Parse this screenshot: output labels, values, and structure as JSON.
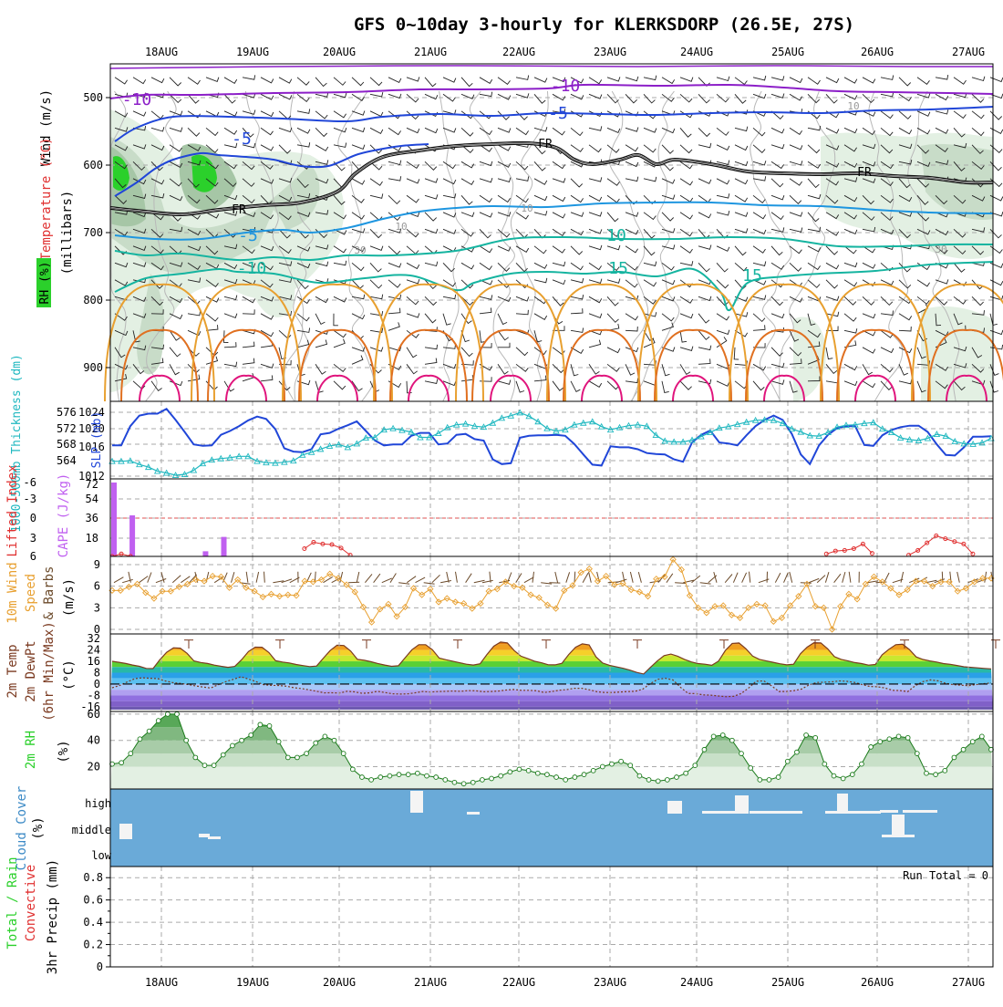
{
  "title": "GFS 0~10day 3-hourly for KLERKSDORP (26.5E, 27S)",
  "dates": [
    "18AUG",
    "19AUG",
    "20AUG",
    "21AUG",
    "22AUG",
    "23AUG",
    "24AUG",
    "25AUG",
    "26AUG",
    "27AUG"
  ],
  "colors": {
    "purple": "#8c1fc8",
    "blue": "#2046d8",
    "lightblue": "#1e96e0",
    "teal": "#15b4a0",
    "orange": "#e8a030",
    "darkorange": "#e07020",
    "magenta": "#e0147c",
    "rhgreen": "#2bd02b",
    "cloudblue": "#6aaad8",
    "cyan": "#20b8c0"
  },
  "chart_data": [
    {
      "panel": "upper-air",
      "type": "contour",
      "ylabel_left": [
        "Wind (m/s)",
        "Temperature (°C)",
        "RH (%)"
      ],
      "ylabel_axis": "(millibars)",
      "yticks": [
        "500",
        "600",
        "700",
        "800",
        "900"
      ],
      "ylim": [
        450,
        950
      ],
      "contour_labels": [
        {
          "text": "-10",
          "color": "purple"
        },
        {
          "text": "-10",
          "color": "purple"
        },
        {
          "text": "-5",
          "color": "blue"
        },
        {
          "text": "-5",
          "color": "blue"
        },
        {
          "text": "FR",
          "color": "black"
        },
        {
          "text": "FR",
          "color": "black"
        },
        {
          "text": "FR",
          "color": "black"
        },
        {
          "text": "-5",
          "color": "lightblue"
        },
        {
          "text": "-10",
          "color": "teal"
        },
        {
          "text": "10",
          "color": "teal"
        },
        {
          "text": "15",
          "color": "teal"
        },
        {
          "text": "15",
          "color": "teal"
        },
        {
          "text": "10",
          "color": "gray"
        },
        {
          "text": "10",
          "color": "gray"
        },
        {
          "text": "10",
          "color": "gray"
        },
        {
          "text": "30",
          "color": "gray"
        },
        {
          "text": "30",
          "color": "gray"
        }
      ]
    },
    {
      "panel": "slp-thickness",
      "type": "line",
      "ylabel_left": "1000-500mb Thickness (dm)",
      "ylabel_right": "SLP (mb)",
      "yticks_thickness": [
        "576",
        "572",
        "568",
        "564"
      ],
      "yticks_slp": [
        "1024",
        "1020",
        "1016",
        "1012"
      ],
      "series": [
        {
          "name": "SLP (mb)",
          "color": "blue",
          "ylim": [
            1012,
            1027
          ],
          "values": [
            1018.4,
            1018.4,
            1022.4,
            1024.6,
            1025,
            1025,
            1026,
            1023.7,
            1021.2,
            1018.6,
            1018.3,
            1018.4,
            1020.6,
            1021.4,
            1022.4,
            1023.6,
            1024.4,
            1023.9,
            1021.8,
            1017.8,
            1017.1,
            1017,
            1017.6,
            1020.7,
            1021,
            1021.9,
            1022.6,
            1023.4,
            1021.4,
            1019.4,
            1018.4,
            1018.6,
            1018.6,
            1020.4,
            1021,
            1021,
            1018.6,
            1018.8,
            1020.6,
            1020.8,
            1019.7,
            1019.4,
            1015.5,
            1014.5,
            1014.7,
            1020,
            1020.4,
            1020.5,
            1020.5,
            1020.6,
            1020.4,
            1018.7,
            1016.5,
            1014.4,
            1014.2,
            1018.2,
            1018,
            1018,
            1017.6,
            1016.8,
            1016.6,
            1016.5,
            1015.5,
            1015,
            1019,
            1020.6,
            1021.5,
            1019,
            1018.8,
            1018.4,
            1020.5,
            1022.4,
            1023.7,
            1024.6,
            1023.7,
            1020.8,
            1016.5,
            1014.5,
            1018.4,
            1020.6,
            1022,
            1022.4,
            1022.4,
            1018.5,
            1018.3,
            1020.5,
            1021.6,
            1022.2,
            1022.5,
            1022.5,
            1021.2,
            1018.6,
            1016.4,
            1016.3,
            1018,
            1020.2,
            1020.2,
            1020.3
          ]
        },
        {
          "name": "Thickness (dm)",
          "color": "cyan",
          "ylim": [
            562,
            578
          ],
          "values": [
            565.3,
            565.3,
            565.4,
            564.6,
            564,
            563.1,
            562.7,
            562.2,
            562.4,
            563.3,
            564.8,
            565.6,
            565.9,
            566.1,
            566.4,
            566.4,
            565.3,
            565,
            564.9,
            565.1,
            565.4,
            566.7,
            567.3,
            568,
            568.7,
            569,
            568.4,
            569.2,
            570.5,
            570.6,
            572.3,
            572.6,
            572.2,
            571.8,
            570.6,
            570.6,
            571.5,
            572.8,
            573.4,
            573.6,
            573.1,
            572.9,
            573.8,
            574.9,
            575.4,
            576.1,
            575.3,
            574.1,
            572.6,
            572,
            572.3,
            573.4,
            573.8,
            574.1,
            573,
            572.3,
            572.8,
            573.2,
            573.4,
            573.1,
            571.1,
            569.8,
            569.6,
            569.6,
            570,
            570.8,
            571.7,
            572.7,
            573,
            573.5,
            574,
            574.4,
            574.5,
            574.4,
            573.7,
            572.5,
            571.8,
            571,
            570.9,
            571.7,
            572.9,
            573.3,
            573.4,
            573.7,
            573.9,
            572.5,
            571.7,
            570.5,
            570.1,
            569.9,
            570.4,
            571.3,
            570.9,
            569.7,
            569.2,
            569.1,
            569.4,
            570.4
          ]
        }
      ]
    },
    {
      "panel": "cape-li",
      "type": "bar",
      "ylabel_left": "Lifted Index",
      "ylabel_right": "CAPE (J/kg)",
      "yticks_li": [
        "-6",
        "-3",
        "0",
        "3",
        "6"
      ],
      "yticks_cape": [
        "72",
        "54",
        "36",
        "18"
      ],
      "series": [
        {
          "name": "CAPE (J/kg)",
          "color": "#c060f0",
          "ylim": [
            0,
            72
          ],
          "bars": [
            {
              "i": 0,
              "v": 72
            },
            {
              "i": 2,
              "v": 40
            },
            {
              "i": 10,
              "v": 5
            },
            {
              "i": 12,
              "v": 19
            }
          ]
        },
        {
          "name": "Lifted Index",
          "color": "red",
          "ylim": [
            -6,
            6
          ],
          "segments": [
            [
              [
                0,
                6.8
              ],
              [
                1,
                6.2
              ],
              [
                2,
                6.6
              ]
            ],
            [
              [
                21,
                5.3
              ],
              [
                22,
                4.2
              ],
              [
                23,
                4.5
              ],
              [
                24,
                4.6
              ],
              [
                25,
                5.2
              ],
              [
                26,
                6.4
              ]
            ],
            [
              [
                78,
                6.2
              ],
              [
                79,
                5.7
              ],
              [
                80,
                5.6
              ],
              [
                81,
                5.3
              ],
              [
                82,
                4.5
              ],
              [
                83,
                6.1
              ]
            ],
            [
              [
                87,
                6.4
              ],
              [
                88,
                5.6
              ],
              [
                89,
                4.3
              ],
              [
                90,
                3.1
              ],
              [
                91,
                3.6
              ],
              [
                92,
                4.1
              ],
              [
                93,
                4.5
              ],
              [
                94,
                6.2
              ]
            ]
          ]
        }
      ]
    },
    {
      "panel": "wind10m",
      "type": "line",
      "ylabel_left": [
        "10m Wind",
        "Speed",
        "& Barbs"
      ],
      "yunit": "(m/s)",
      "yticks": [
        "9",
        "6",
        "3",
        "0"
      ],
      "ylim": [
        0,
        9.5
      ],
      "series": [
        {
          "name": "10m Wind Speed",
          "color": "#e8a030",
          "values": [
            5.4,
            5.4,
            5.9,
            6.3,
            5.1,
            4.3,
            5.3,
            5.3,
            5.9,
            6.3,
            6.9,
            6.7,
            7.4,
            7.3,
            5.8,
            6.9,
            5.8,
            5.3,
            4.5,
            4.9,
            4.6,
            4.8,
            4.7,
            6.7,
            6.6,
            6.9,
            7.7,
            7.1,
            6.2,
            5.2,
            3.1,
            1,
            2.8,
            3.5,
            1.8,
            3.1,
            5.7,
            4.8,
            5.6,
            3.8,
            4.3,
            3.8,
            3.6,
            2.9,
            3.6,
            5.3,
            5.6,
            6.6,
            6,
            5.8,
            4.8,
            4.4,
            3.4,
            2.9,
            5.4,
            6.1,
            7.9,
            8.4,
            6.7,
            7.4,
            6.2,
            6.4,
            5.5,
            5.2,
            4.6,
            7,
            7.3,
            9.7,
            8.3,
            4.7,
            3,
            2.3,
            3.2,
            3.3,
            2,
            1.6,
            3,
            3.5,
            3.3,
            1.1,
            1.6,
            3.3,
            4.6,
            6.3,
            3.2,
            3,
            0,
            3.2,
            4.9,
            4.2,
            6.3,
            7.3,
            6.6,
            5.7,
            4.8,
            5.5,
            6.7,
            6.7,
            6,
            6.6,
            6.6,
            5.3,
            5.7,
            6.6,
            7.1,
            7.1
          ]
        }
      ]
    },
    {
      "panel": "temp2m",
      "type": "area",
      "ylabel_left": [
        "2m Temp",
        "2m DewPt",
        "(6hr Min/Max)"
      ],
      "yunit": "(°C)",
      "yticks": [
        "32",
        "24",
        "16",
        "8",
        "0",
        "-8",
        "-16"
      ],
      "ylim": [
        -18,
        34
      ],
      "series": [
        {
          "name": "2m Temp (°C)",
          "values": [
            16,
            15.3,
            14.5,
            13.4,
            12.5,
            11,
            10.9,
            17.1,
            22.4,
            25.5,
            25.3,
            21.6,
            16.3,
            15.2,
            14.5,
            13.3,
            12.5,
            11.8,
            12.4,
            17.2,
            22.9,
            26,
            25.9,
            22.2,
            16.4,
            15.5,
            14.9,
            13.8,
            13,
            12.3,
            12.7,
            18.3,
            23.6,
            27.3,
            27.1,
            23.2,
            17.4,
            16.7,
            15.7,
            14.5,
            13.4,
            12.5,
            12.9,
            18.5,
            24.2,
            27.7,
            27.7,
            24.2,
            18.3,
            17.1,
            16.1,
            15,
            14,
            13.4,
            14.3,
            20.8,
            26.6,
            29.6,
            29,
            23.6,
            19.6,
            17.9,
            16.1,
            15,
            13.6,
            13.5,
            14.6,
            20.8,
            25.9,
            28.3,
            27.6,
            19.2,
            14.8,
            13.2,
            12.1,
            11.1,
            9.8,
            8.2,
            7.1,
            11.8,
            16.2,
            20,
            21.1,
            19.6,
            17.4,
            15.6,
            14.4,
            14,
            13.2,
            16.2,
            23.7,
            28.6,
            28.9,
            24.9,
            19.7,
            17.4,
            16.3,
            15.3,
            14.3,
            13.5,
            14,
            21.3,
            26,
            29.1,
            29,
            24.8,
            19.3,
            17.4,
            16.3,
            15.1,
            14.4,
            13.3,
            13.8,
            20.6,
            24.5,
            27.7,
            28,
            24.3,
            19.1,
            17.3,
            16.3,
            15.5,
            14.4,
            13.9,
            13.1,
            12.2,
            11.8,
            11.4,
            11,
            10.7
          ]
        },
        {
          "name": "2m DewPt (°C)",
          "values": [
            -2.6,
            -1,
            1.5,
            3.8,
            4.4,
            4.1,
            3.8,
            2.2,
            1,
            0.5,
            -0.3,
            -1.3,
            -2.1,
            -2.8,
            -0.5,
            1.7,
            3.4,
            5.2,
            3.5,
            1.7,
            -0.5,
            -0.9,
            -1,
            -1.5,
            -2.6,
            -3.2,
            -4.1,
            -5.1,
            -6.2,
            -6.1,
            -6.3,
            -5.1,
            -5.5,
            -6.5,
            -6.2,
            -5.1,
            -5.9,
            -6.8,
            -7,
            -6.9,
            -6.1,
            -5.2,
            -5.6,
            -5.3,
            -5.1,
            -4.9,
            -5.1,
            -4.6,
            -4.7,
            -5.4,
            -5.2,
            -4.9,
            -4.2,
            -3.8,
            -4.4,
            -4.4,
            -4.7,
            -5.9,
            -5.3,
            -4.3,
            -3.9,
            -3,
            -3,
            -4.1,
            -5.4,
            -5.9,
            -5.9,
            -5.6,
            -5.3,
            -5.1,
            -3.7,
            0.2,
            3.4,
            4.1,
            2.9,
            -2.3,
            -6.6,
            -6.7,
            -7.6,
            -7.8,
            -8.4,
            -8.9,
            -8.6,
            -6.7,
            -2.7,
            2,
            2.2,
            -1.2,
            -5.2,
            -5.2,
            -4.6,
            -3.5,
            -0.5,
            1.1,
            1.3,
            1.6,
            2.2,
            1.9,
            1.1,
            -0.4,
            -1.7,
            -1.9,
            -2.8,
            -4.4,
            -4.6,
            -5.3,
            -1.1,
            1.7,
            2.9,
            2.3,
            0.5,
            -0.4,
            -0.8,
            -1.1,
            -0.4,
            0.2,
            0.8
          ]
        }
      ]
    },
    {
      "panel": "rh2m",
      "type": "area",
      "ylabel_left": "2m RH",
      "yunit": "(%)",
      "yticks": [
        "60",
        "40",
        "20"
      ],
      "ylim": [
        3,
        62
      ],
      "series": [
        {
          "name": "2m RH (%)",
          "color": "#2bd02b",
          "values": [
            22,
            23,
            30,
            41,
            47,
            55,
            60,
            60,
            40,
            27,
            21,
            21,
            29,
            36,
            40,
            44,
            52,
            51,
            39,
            27,
            27,
            30,
            38,
            43,
            40,
            30,
            18,
            12,
            10,
            12,
            13,
            14,
            14,
            15,
            13,
            12,
            10,
            8,
            7,
            8,
            10,
            11,
            13,
            16,
            18,
            17,
            15,
            14,
            12,
            10,
            12,
            14,
            17,
            20,
            22,
            24,
            21,
            13,
            10,
            9,
            10,
            12,
            15,
            21,
            33,
            43,
            44,
            40,
            30,
            19,
            10,
            10,
            12,
            24,
            31,
            44,
            42,
            22,
            13,
            11,
            14,
            22,
            35,
            39,
            41,
            43,
            42,
            30,
            15,
            14,
            17,
            27,
            33,
            39,
            43,
            33
          ]
        }
      ]
    },
    {
      "panel": "cloud",
      "type": "bar",
      "ylabel_left": "Cloud Cover",
      "yunit": "(%)",
      "yticks": [
        "high",
        "middle",
        "low"
      ]
    },
    {
      "panel": "precip",
      "type": "bar",
      "ylabel_left": [
        "Total / Rain",
        "Convective"
      ],
      "yunit": "3hr Precip (mm)",
      "yticks": [
        "0.8",
        "0.6",
        "0.4",
        "0.2",
        "0"
      ],
      "ylim": [
        0,
        0.9
      ],
      "run_total_label": "Run Total = 0",
      "values": []
    }
  ]
}
